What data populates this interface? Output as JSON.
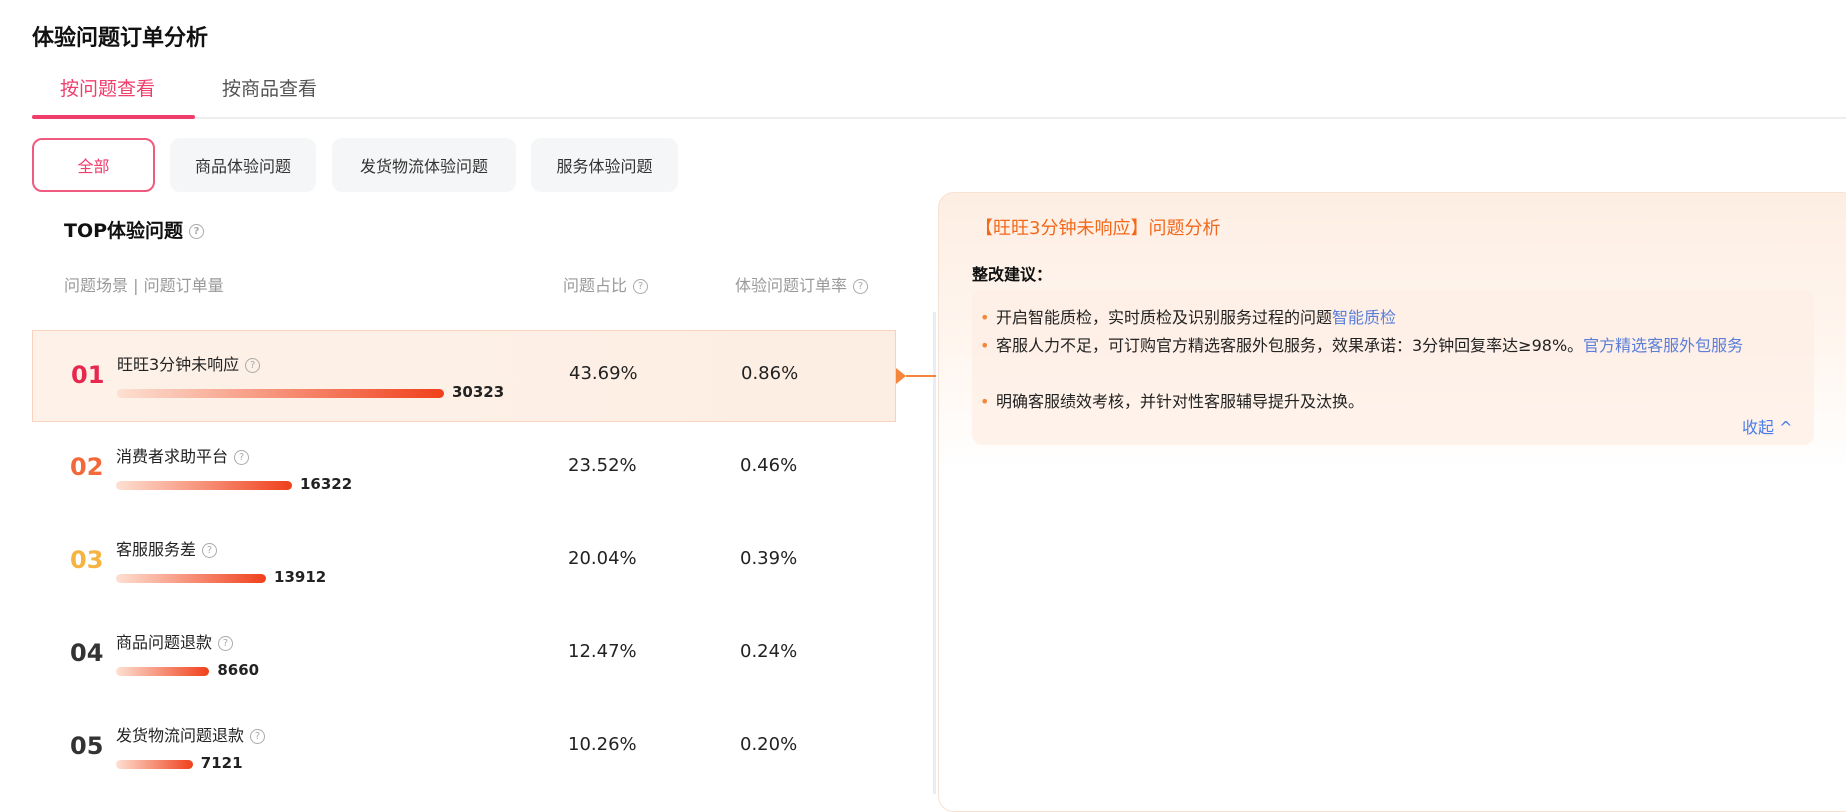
{
  "title": "体验问题订单分析",
  "tabs": [
    "按问题查看",
    "按商品查看"
  ],
  "filters": [
    "全部",
    "商品体验问题",
    "发货物流体验问题",
    "服务体验问题"
  ],
  "section_title": "TOP体验问题",
  "headers": {
    "scene": "问题场景 | 问题订单量",
    "share": "问题占比",
    "rate": "体验问题订单率"
  },
  "help_icon": "?",
  "rows": [
    {
      "rank": "01",
      "name": "旺旺3分钟未响应",
      "count": "30323",
      "share": "43.69%",
      "rate": "0.86%",
      "rank_color": "#e8274e"
    },
    {
      "rank": "02",
      "name": "消费者求助平台",
      "count": "16322",
      "share": "23.52%",
      "rate": "0.46%",
      "rank_color": "#f26a3a"
    },
    {
      "rank": "03",
      "name": "客服服务差",
      "count": "13912",
      "share": "20.04%",
      "rate": "0.39%",
      "rank_color": "#f5b341"
    },
    {
      "rank": "04",
      "name": "商品问题退款",
      "count": "8660",
      "share": "12.47%",
      "rate": "0.24%",
      "rank_color": "#333333"
    },
    {
      "rank": "05",
      "name": "发货物流问题退款",
      "count": "7121",
      "share": "10.26%",
      "rate": "0.20%",
      "rank_color": "#333333"
    }
  ],
  "panel": {
    "title": "【旺旺3分钟未响应】问题分析",
    "advice_label": "整改建议：",
    "items": [
      {
        "text": "开启智能质检，实时质检及识别服务过程的问题",
        "link": "智能质检"
      },
      {
        "text": "客服人力不足，可订购官方精选客服外包服务，效果承诺：3分钟回复率达≥98%。",
        "link": "官方精选客服外包服务"
      },
      {
        "text": "明确客服绩效考核，并针对性客服辅导提升及汰换。",
        "link": ""
      }
    ],
    "collapse": "收起 ^"
  }
}
